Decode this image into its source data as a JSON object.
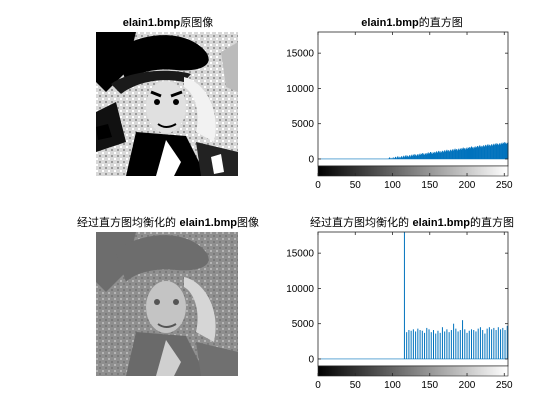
{
  "figure": {
    "titles": {
      "original_image": {
        "name": "elain1.bmp",
        "suffix": "原图像"
      },
      "original_hist": {
        "name": "elain1.bmp",
        "suffix": "的直方图"
      },
      "equalized_image": {
        "prefix": "经过直方图均衡化的 ",
        "name": "elain1.bmp",
        "suffix": "图像"
      },
      "equalized_hist": {
        "prefix": "经过直方图均衡化的 ",
        "name": "elain1.bmp",
        "suffix": "的直方图"
      }
    }
  },
  "chart_data": [
    {
      "type": "bar",
      "title": "elain1.bmp的直方图",
      "xlim": [
        0,
        255
      ],
      "ylim": [
        -1000,
        18000
      ],
      "xticks": [
        "0",
        "50",
        "100",
        "150",
        "200",
        "250"
      ],
      "yticks": [
        "0",
        "5000",
        "10000",
        "15000"
      ],
      "colorbar": "grayscale 0-255 below x-axis",
      "series": [
        {
          "x_start": 95,
          "x_end": 255,
          "step": 1,
          "values_note": "near 0 below ~95, rises roughly linearly to ~2300 at 255",
          "y_start": 50,
          "y_end": 2300
        }
      ],
      "bar_color": "#0072BD"
    },
    {
      "type": "bar",
      "title": "经过直方图均衡化的 elain1.bmp的直方图",
      "xlim": [
        0,
        255
      ],
      "ylim": [
        -1000,
        18000
      ],
      "xticks": [
        "0",
        "50",
        "100",
        "150",
        "200",
        "250"
      ],
      "yticks": [
        "0",
        "5000",
        "10000",
        "15000"
      ],
      "colorbar": "grayscale 0-255 below x-axis",
      "spike": {
        "x": 116,
        "value": 18000
      },
      "bars": [
        {
          "x": 119,
          "v": 3800
        },
        {
          "x": 122,
          "v": 4100
        },
        {
          "x": 125,
          "v": 4000
        },
        {
          "x": 128,
          "v": 4200
        },
        {
          "x": 131,
          "v": 3900
        },
        {
          "x": 134,
          "v": 4300
        },
        {
          "x": 137,
          "v": 4100
        },
        {
          "x": 140,
          "v": 4000
        },
        {
          "x": 143,
          "v": 3700
        },
        {
          "x": 146,
          "v": 4400
        },
        {
          "x": 149,
          "v": 4200
        },
        {
          "x": 152,
          "v": 3800
        },
        {
          "x": 155,
          "v": 4100
        },
        {
          "x": 158,
          "v": 3600
        },
        {
          "x": 161,
          "v": 4000
        },
        {
          "x": 164,
          "v": 3700
        },
        {
          "x": 167,
          "v": 4500
        },
        {
          "x": 170,
          "v": 3900
        },
        {
          "x": 173,
          "v": 4200
        },
        {
          "x": 176,
          "v": 3800
        },
        {
          "x": 179,
          "v": 4100
        },
        {
          "x": 182,
          "v": 5000
        },
        {
          "x": 185,
          "v": 4300
        },
        {
          "x": 188,
          "v": 3900
        },
        {
          "x": 191,
          "v": 4100
        },
        {
          "x": 194,
          "v": 5500
        },
        {
          "x": 197,
          "v": 4200
        },
        {
          "x": 200,
          "v": 3700
        },
        {
          "x": 203,
          "v": 4000
        },
        {
          "x": 206,
          "v": 4200
        },
        {
          "x": 209,
          "v": 4100
        },
        {
          "x": 212,
          "v": 3900
        },
        {
          "x": 215,
          "v": 4300
        },
        {
          "x": 218,
          "v": 4500
        },
        {
          "x": 221,
          "v": 4100
        },
        {
          "x": 224,
          "v": 3600
        },
        {
          "x": 227,
          "v": 4300
        },
        {
          "x": 230,
          "v": 4500
        },
        {
          "x": 233,
          "v": 4200
        },
        {
          "x": 236,
          "v": 4400
        },
        {
          "x": 239,
          "v": 4100
        },
        {
          "x": 242,
          "v": 4500
        },
        {
          "x": 245,
          "v": 4200
        },
        {
          "x": 248,
          "v": 4400
        },
        {
          "x": 251,
          "v": 4100
        },
        {
          "x": 254,
          "v": 4700
        }
      ],
      "bar_color": "#0072BD"
    }
  ]
}
